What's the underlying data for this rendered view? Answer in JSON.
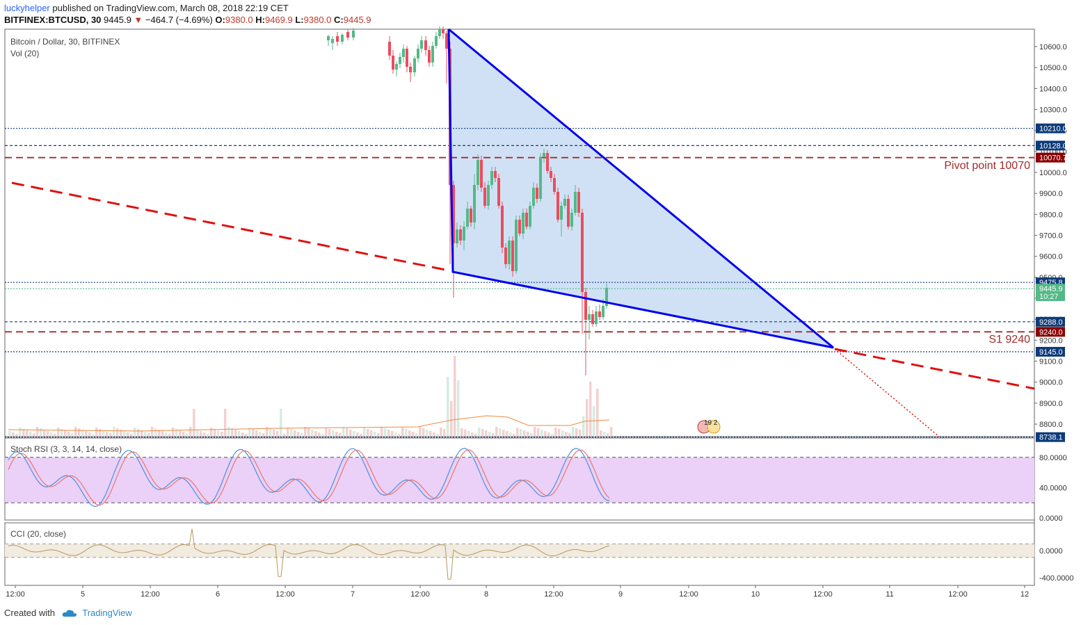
{
  "header": {
    "user": "luckyhelper",
    "published": "published on TradingView.com, March 08, 2018 22:19 CET",
    "symbol": "BITFINEX:BTCUSD, 30",
    "last": "9445.9",
    "change": "−464.7 (−4.69%)",
    "o_label": "O:",
    "o": "9380.0",
    "h_label": "H:",
    "h": "9469.9",
    "l_label": "L:",
    "l": "9380.0",
    "c_label": "C:",
    "c": "9445.9"
  },
  "legend": {
    "main": "Bitcoin / Dollar, 30, BITFINEX",
    "vol": "Vol (20)"
  },
  "footer": {
    "created_with": "Created with",
    "brand": "TradingView"
  },
  "colors": {
    "up": "#53b987",
    "down": "#eb4d5c",
    "triangle": "#0000ee",
    "fill": "#c8dcf5",
    "pivot": "#a52a2a",
    "trend": "#e01010"
  },
  "chart_data": [
    {
      "type": "line",
      "title": "Bitcoin / Dollar, 30, BITFINEX",
      "y_ticks": [
        10600,
        10500,
        10400,
        10300,
        10200,
        10100,
        10000,
        9900,
        9800,
        9700,
        9600,
        9500,
        9400,
        9300,
        9200,
        9100,
        9000,
        8900,
        8800
      ],
      "y_tick_labels": [
        "10600.0",
        "10500.0",
        "10400.0",
        "10300.0",
        "10200.0",
        "10100.0",
        "10000.0",
        "9900.0",
        "9800.0",
        "9700.0",
        "9600.0",
        "9500.0",
        "9400.0",
        "9300.0",
        "9200.0",
        "9100.0",
        "9000.0",
        "8900.0",
        "8800.0"
      ],
      "x_ticks": [
        "12:00",
        "5",
        "12:00",
        "6",
        "12:00",
        "7",
        "12:00",
        "8",
        "12:00",
        "9",
        "12:00",
        "10",
        "12:00",
        "11",
        "12:00",
        "12"
      ],
      "price_badges": [
        {
          "label": "10210.0",
          "value": 10210,
          "color": "#0d3b7a"
        },
        {
          "label": "10128.0",
          "value": 10128,
          "color": "#0d3b7a"
        },
        {
          "label": "10070.7",
          "value": 10070.7,
          "color": "#8b0000"
        },
        {
          "label": "9475.8",
          "value": 9475.8,
          "color": "#0d3b7a"
        },
        {
          "label": "9445.9",
          "value": 9445.9,
          "color": "#53b987"
        },
        {
          "label": "10:27",
          "value": 9410,
          "color": "#53b987"
        },
        {
          "label": "9288.0",
          "value": 9288,
          "color": "#0d3b7a"
        },
        {
          "label": "9240.0",
          "value": 9240,
          "color": "#8b0000"
        },
        {
          "label": "9145.0",
          "value": 9145,
          "color": "#0d3b7a"
        },
        {
          "label": "8738.1",
          "value": 8738.1,
          "color": "#0d3b7a"
        }
      ],
      "annotations": [
        {
          "text": "Pivot point 10070",
          "value": 10070
        },
        {
          "text": "S1 9240",
          "value": 9240
        }
      ],
      "events_badge": {
        "text": "19  2"
      }
    },
    {
      "type": "line",
      "title": "Stoch RSI (3, 3, 14, 14, close)",
      "y_tick_labels": [
        "80.0000",
        "40.0000",
        "0.0000"
      ],
      "y_ticks": [
        80,
        40,
        0
      ],
      "bands": [
        20,
        80
      ]
    },
    {
      "type": "line",
      "title": "CCI (20, close)",
      "y_tick_labels": [
        "0.0000",
        "-400.0000"
      ],
      "y_ticks": [
        0,
        -400
      ],
      "bands": [
        -100,
        100
      ]
    }
  ]
}
